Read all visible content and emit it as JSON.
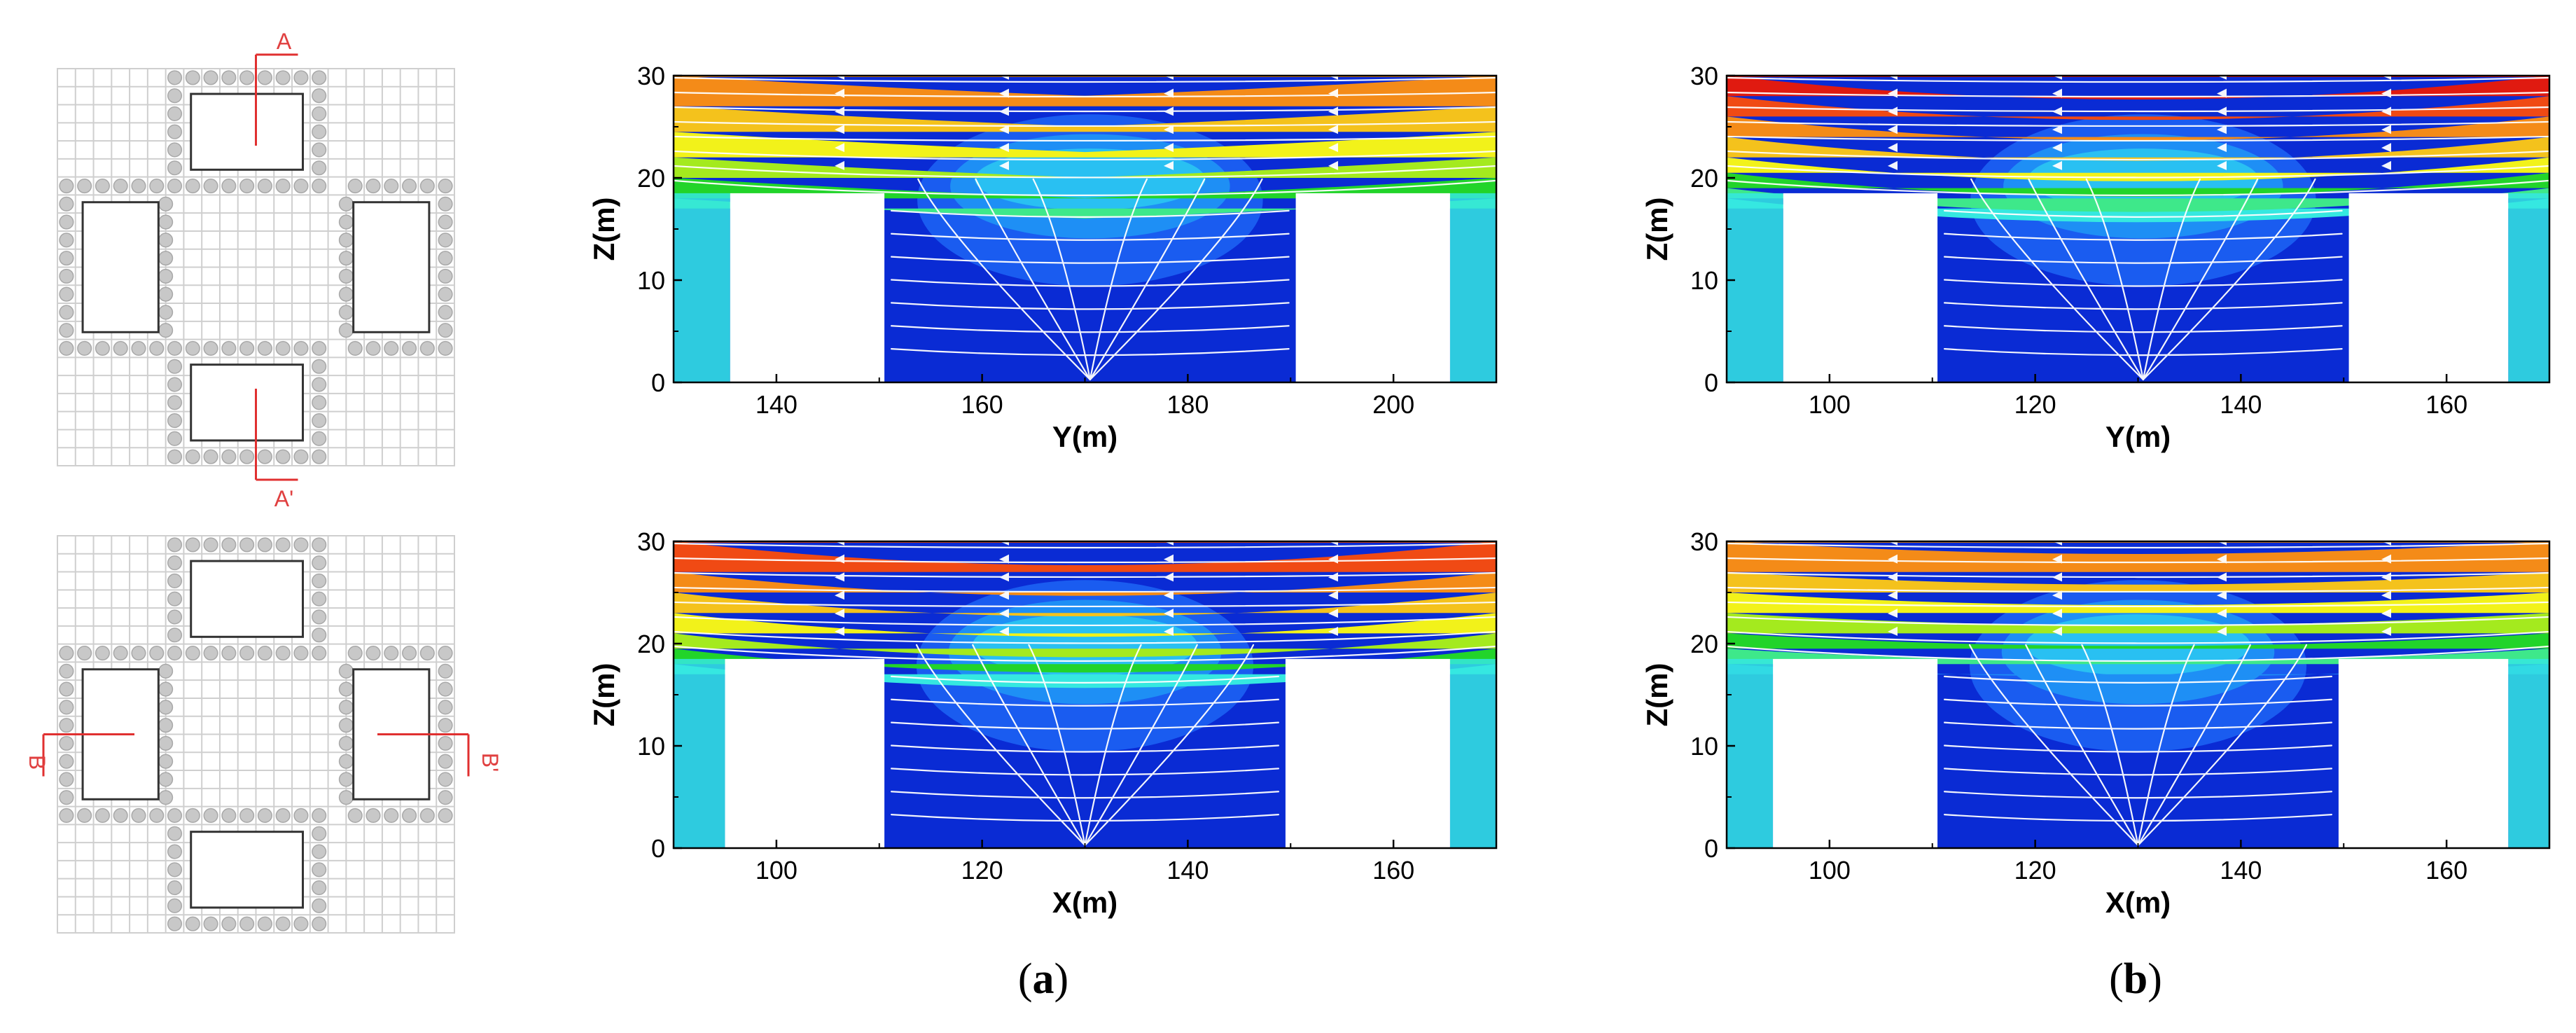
{
  "figure": {
    "panel_labels": [
      {
        "open": "(",
        "letter": "a",
        "close": ")"
      },
      {
        "open": "(",
        "letter": "b",
        "close": ")"
      }
    ],
    "section_markers": {
      "plan_top": {
        "a_top": "A",
        "a_bottom": "A'"
      },
      "plan_bottom": {
        "b_left": "B",
        "b_right": "B'"
      }
    },
    "colors": {
      "section_line": "#e03030",
      "grid": "#cfcfcf",
      "building": "#333333",
      "tree": "#c8c8c8",
      "streamline": "#ffffff",
      "levels": [
        "#0a2bd4",
        "#1a5cf0",
        "#1e8ff5",
        "#29c0f2",
        "#35e8e0",
        "#3ee88a",
        "#22d42a",
        "#a4ea1e",
        "#f2f21a",
        "#f4c21c",
        "#f48b18",
        "#f04a14",
        "#e01a10"
      ]
    }
  },
  "chart_data": [
    {
      "id": "a-top",
      "type": "heatmap",
      "xlabel": "Y(m)",
      "ylabel": "Z(m)",
      "xlim": [
        130,
        210
      ],
      "ylim": [
        0,
        30
      ],
      "xticks": [
        140,
        160,
        180,
        200
      ],
      "yticks": [
        0,
        10,
        20,
        30
      ],
      "buildings": [
        {
          "x0": 135.5,
          "x1": 150.5,
          "height": 18.5
        },
        {
          "x0": 190.5,
          "x1": 205.5,
          "height": 18.5
        }
      ],
      "level_bands": [
        {
          "z": 18,
          "level": 5
        },
        {
          "z": 20,
          "level": 6
        },
        {
          "z": 22,
          "level": 7
        },
        {
          "z": 24.5,
          "level": 8
        },
        {
          "z": 27,
          "level": 9
        },
        {
          "z": 30,
          "level": 10
        }
      ]
    },
    {
      "id": "b-top",
      "type": "heatmap",
      "xlabel": "Y(m)",
      "ylabel": "Z(m)",
      "xlim": [
        90,
        170
      ],
      "ylim": [
        0,
        30
      ],
      "xticks": [
        100,
        120,
        140,
        160
      ],
      "yticks": [
        0,
        10,
        20,
        30
      ],
      "buildings": [
        {
          "x0": 95.5,
          "x1": 110.5,
          "height": 18.5
        },
        {
          "x0": 150.5,
          "x1": 166.0,
          "height": 18.5
        }
      ],
      "level_bands": [
        {
          "z": 18,
          "level": 4
        },
        {
          "z": 19,
          "level": 5
        },
        {
          "z": 20.5,
          "level": 6
        },
        {
          "z": 22,
          "level": 8
        },
        {
          "z": 24,
          "level": 9
        },
        {
          "z": 26,
          "level": 10
        },
        {
          "z": 28,
          "level": 11
        },
        {
          "z": 30,
          "level": 12
        }
      ]
    },
    {
      "id": "a-bottom",
      "type": "heatmap",
      "xlabel": "X(m)",
      "ylabel": "Z(m)",
      "xlim": [
        90,
        170
      ],
      "ylim": [
        0,
        30
      ],
      "xticks": [
        100,
        120,
        140,
        160
      ],
      "yticks": [
        0,
        10,
        20,
        30
      ],
      "buildings": [
        {
          "x0": 95.0,
          "x1": 110.5,
          "height": 18.5
        },
        {
          "x0": 149.5,
          "x1": 165.5,
          "height": 18.5
        }
      ],
      "level_bands": [
        {
          "z": 18,
          "level": 4
        },
        {
          "z": 19.5,
          "level": 6
        },
        {
          "z": 21,
          "level": 7
        },
        {
          "z": 23,
          "level": 8
        },
        {
          "z": 25,
          "level": 9
        },
        {
          "z": 27,
          "level": 10
        },
        {
          "z": 30,
          "level": 11
        }
      ]
    },
    {
      "id": "b-bottom",
      "type": "heatmap",
      "xlabel": "X(m)",
      "ylabel": "Z(m)",
      "xlim": [
        90,
        170
      ],
      "ylim": [
        0,
        30
      ],
      "xticks": [
        100,
        120,
        140,
        160
      ],
      "yticks": [
        0,
        10,
        20,
        30
      ],
      "buildings": [
        {
          "x0": 94.5,
          "x1": 110.5,
          "height": 18.5
        },
        {
          "x0": 149.5,
          "x1": 166.0,
          "height": 18.5
        }
      ],
      "level_bands": [
        {
          "z": 18,
          "level": 2
        },
        {
          "z": 19.5,
          "level": 5
        },
        {
          "z": 21,
          "level": 6
        },
        {
          "z": 23,
          "level": 7
        },
        {
          "z": 25,
          "level": 8
        },
        {
          "z": 27,
          "level": 9
        },
        {
          "z": 30,
          "level": 10
        }
      ]
    }
  ]
}
